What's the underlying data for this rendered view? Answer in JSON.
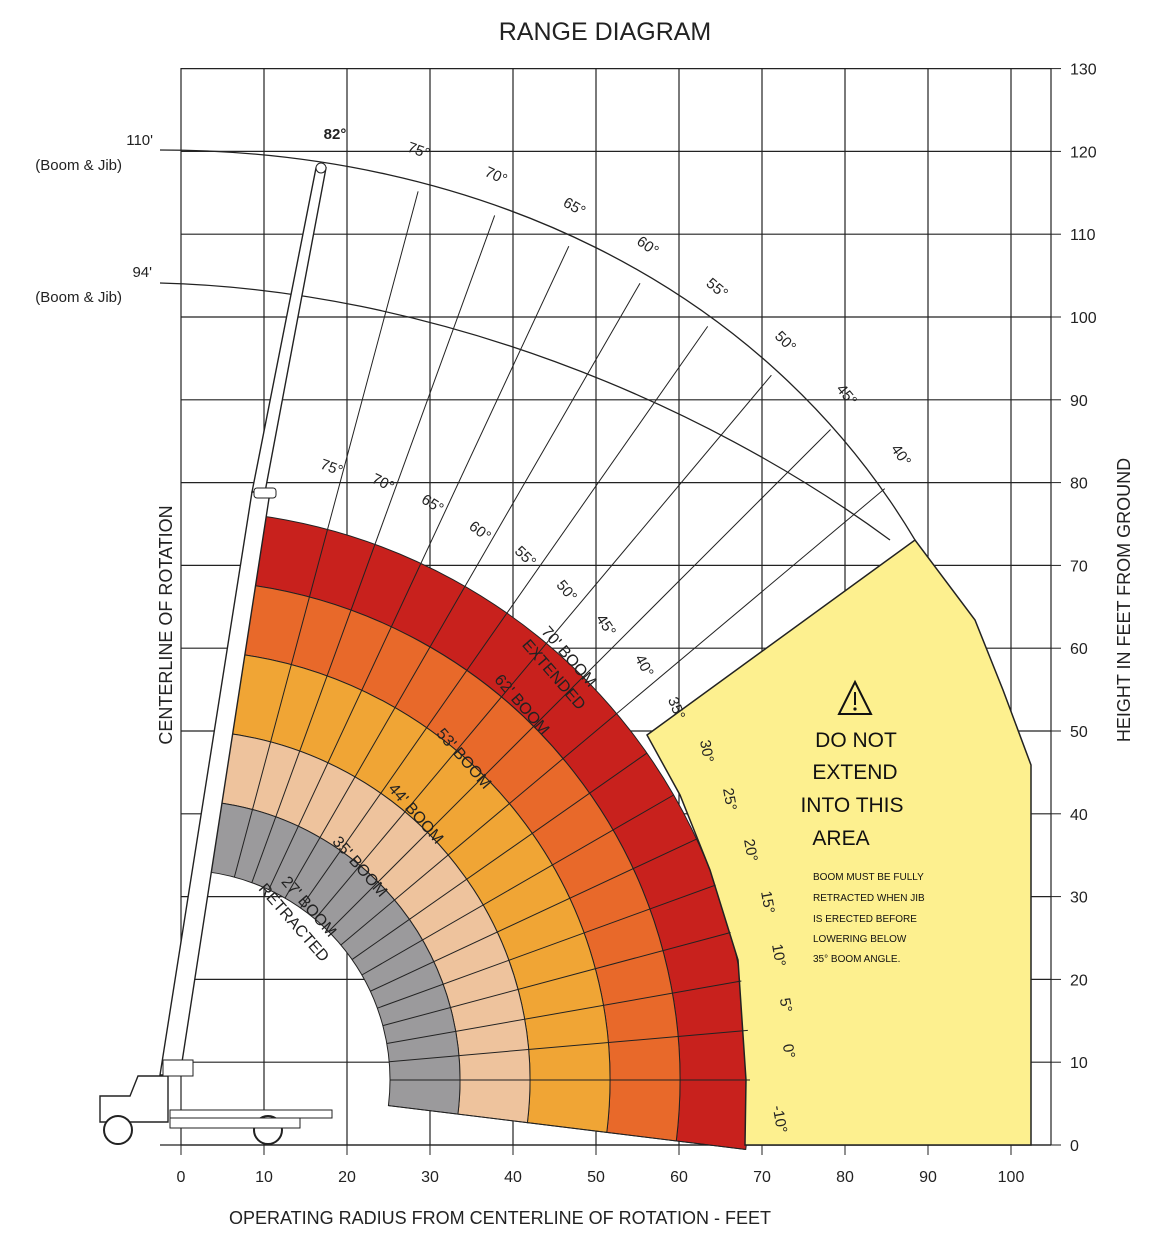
{
  "title": "RANGE DIAGRAM",
  "x_axis_title": "OPERATING RADIUS FROM CENTERLINE OF ROTATION - FEET",
  "y_axis_title": "HEIGHT IN FEET FROM GROUND",
  "centerline_label": "CENTERLINE OF ROTATION",
  "x_ticks": [
    "0",
    "10",
    "20",
    "30",
    "40",
    "50",
    "60",
    "70",
    "80",
    "90",
    "100"
  ],
  "y_ticks": [
    "0",
    "10",
    "20",
    "30",
    "40",
    "50",
    "60",
    "70",
    "80",
    "90",
    "100",
    "110",
    "120",
    "130"
  ],
  "jib_labels": {
    "jib_110": "110'",
    "jib_110_sub": "(Boom & Jib)",
    "jib_94": "94'",
    "jib_94_sub": "(Boom & Jib)",
    "max_angle": "82°"
  },
  "outer_angles": [
    "75°",
    "70°",
    "65°",
    "60°",
    "55°",
    "50°",
    "45°",
    "40°"
  ],
  "inner_angles": [
    "75°",
    "70°",
    "65°",
    "60°",
    "55°",
    "50°",
    "45°",
    "40°",
    "35°",
    "30°",
    "25°",
    "20°",
    "15°",
    "10°",
    "5°",
    "0°",
    "-10°"
  ],
  "zones": [
    {
      "name": "70' BOOM EXTENDED",
      "line1": "70' BOOM",
      "line2": "EXTENDED",
      "color": "#c8211d"
    },
    {
      "name": "62' BOOM",
      "line1": "62' BOOM",
      "color": "#e8692a"
    },
    {
      "name": "53' BOOM",
      "line1": "53' BOOM",
      "color": "#f0a535"
    },
    {
      "name": "44' BOOM",
      "line1": "44' BOOM",
      "color": "#eec39d"
    },
    {
      "name": "35' BOOM",
      "line1": "35' BOOM",
      "color": "#9b9a9c"
    },
    {
      "name": "27' BOOM RETRACTED",
      "line1": "27' BOOM",
      "line2": "RETRACTED"
    }
  ],
  "warning": {
    "line1": "DO NOT",
    "line2": "EXTEND",
    "line3": "INTO THIS",
    "line4": "AREA",
    "note1": "BOOM MUST BE FULLY",
    "note2": "RETRACTED WHEN JIB",
    "note3": "IS ERECTED BEFORE",
    "note4": "LOWERING BELOW",
    "note5": "35° BOOM ANGLE.",
    "color": "#fdf08f",
    "icon": "warning-triangle-icon"
  }
}
